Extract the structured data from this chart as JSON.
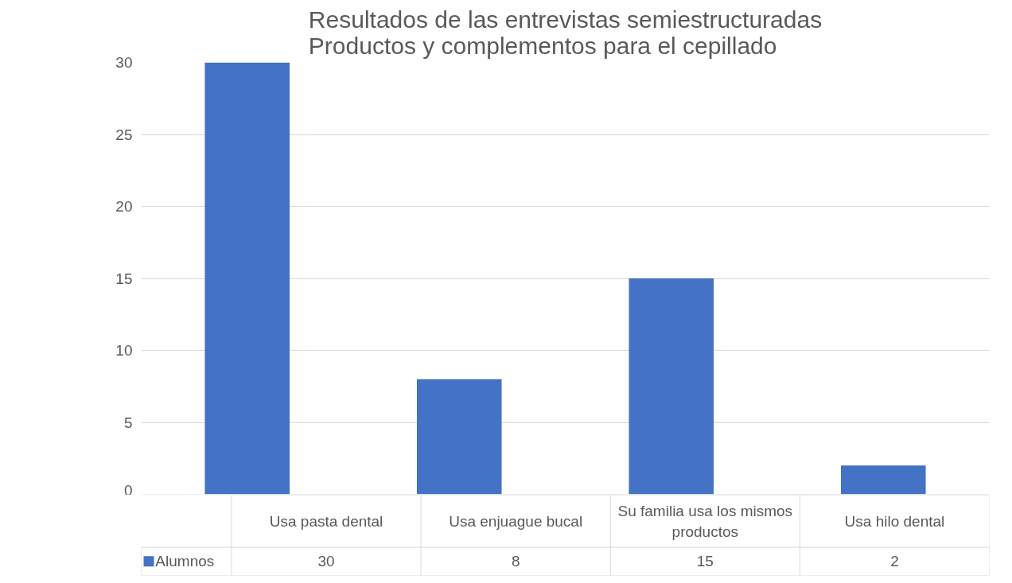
{
  "chart_data": {
    "type": "bar",
    "title": "Resultados de las entrevistas semiestructuradas\nProductos y complementos para el cepillado",
    "categories": [
      "Usa pasta dental",
      "Usa enjuague bucal",
      "Su familia usa los mismos productos",
      "Usa hilo dental"
    ],
    "series": [
      {
        "name": "Alumnos",
        "color": "#4472c4",
        "values": [
          30,
          8,
          15,
          2
        ]
      }
    ],
    "ylim": [
      0,
      30
    ],
    "yticks": [
      0,
      5,
      10,
      15,
      20,
      25,
      30
    ],
    "grid": "y",
    "legend": "bottom",
    "data_labels": true
  }
}
